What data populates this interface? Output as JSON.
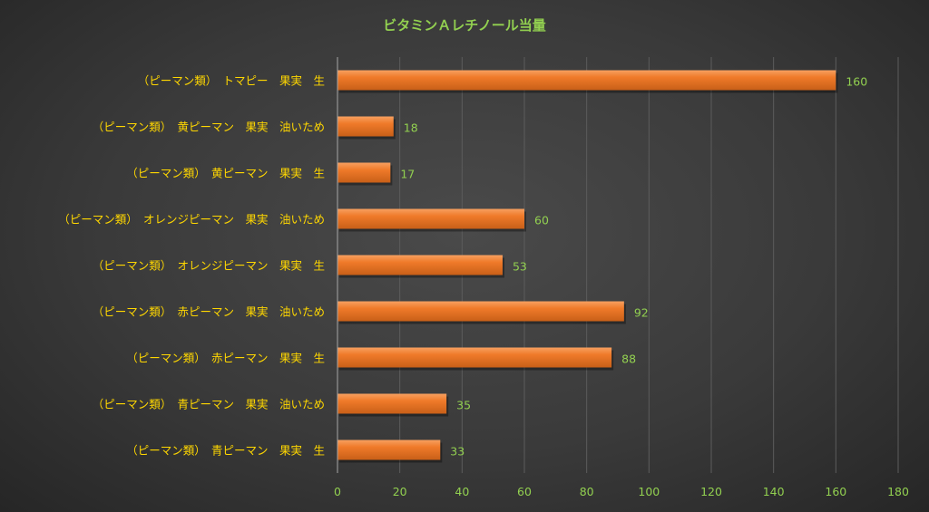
{
  "chart_data": {
    "type": "bar",
    "orientation": "horizontal",
    "title": "ビタミンＡレチノール当量",
    "categories": [
      "（ピーマン類）　トマピー　果実　生",
      "（ピーマン類）　黄ピーマン　果実　油いため",
      "（ピーマン類）　黄ピーマン　果実　生",
      "（ピーマン類）　オレンジピーマン　果実　油いため",
      "（ピーマン類）　オレンジピーマン　果実　生",
      "（ピーマン類）　赤ピーマン　果実　油いため",
      "（ピーマン類）　赤ピーマン　果実　生",
      "（ピーマン類）　青ピーマン　果実　油いため",
      "（ピーマン類）　青ピーマン　果実　生"
    ],
    "values": [
      160,
      18,
      17,
      60,
      53,
      92,
      88,
      35,
      33
    ],
    "xlim": [
      0,
      180
    ],
    "xticks": [
      0,
      20,
      40,
      60,
      80,
      100,
      120,
      140,
      160,
      180
    ],
    "grid": true,
    "legend": "none",
    "colors": {
      "bar": "#f07b2a",
      "bar_highlight": "#f7a060",
      "bar_shadow": "#c85f18",
      "title": "#92d050",
      "category_text": "#ffd700",
      "tick_text": "#92d050",
      "data_label": "#92d050",
      "gridline": "#5c5c5c",
      "axis_line": "#a6a6a6"
    }
  }
}
